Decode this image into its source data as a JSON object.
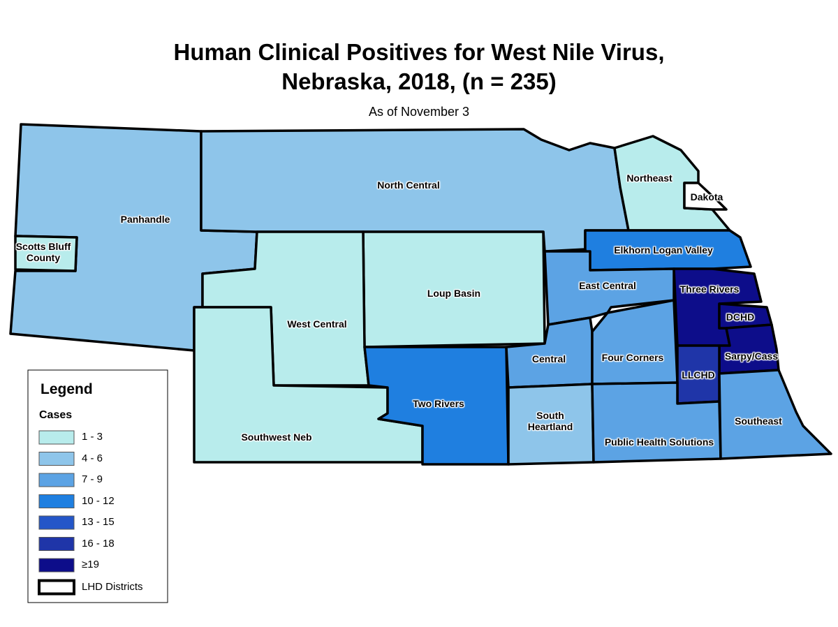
{
  "title_line1": "Human Clinical Positives for West Nile Virus,",
  "title_line2": "Nebraska, 2018, (n = 235)",
  "subtitle": "As of November 3",
  "regions": [
    {
      "name": "Panhandle",
      "color": "#8ec5ea"
    },
    {
      "name": "Scotts Bluff County",
      "color": "#b8ecec"
    },
    {
      "name": "North Central",
      "color": "#8ec5ea"
    },
    {
      "name": "Northeast",
      "color": "#b8ecec"
    },
    {
      "name": "Dakota",
      "color": "#ffffff"
    },
    {
      "name": "Elkhorn Logan Valley",
      "color": "#1f7fe0"
    },
    {
      "name": "Loup Basin",
      "color": "#b8ecec"
    },
    {
      "name": "West Central",
      "color": "#b8ecec"
    },
    {
      "name": "Southwest Neb",
      "color": "#b8ecec"
    },
    {
      "name": "Two Rivers",
      "color": "#1f7fe0"
    },
    {
      "name": "East Central",
      "color": "#5ca3e4"
    },
    {
      "name": "Central",
      "color": "#5ca3e4"
    },
    {
      "name": "South Heartland",
      "color": "#8ec5ea"
    },
    {
      "name": "Four Corners",
      "color": "#5ca3e4"
    },
    {
      "name": "Three Rivers",
      "color": "#0d0d8a"
    },
    {
      "name": "DCHD",
      "color": "#0d0d8a"
    },
    {
      "name": "Sarpy/Cass",
      "color": "#0d0d8a"
    },
    {
      "name": "LLCHD",
      "color": "#1f35a8"
    },
    {
      "name": "Public Health Solutions",
      "color": "#5ca3e4"
    },
    {
      "name": "Southeast",
      "color": "#5ca3e4"
    }
  ],
  "legend": {
    "title": "Legend",
    "subtitle": "Cases",
    "items": [
      {
        "label": "1 - 3",
        "color": "#b8ecec"
      },
      {
        "label": "4 - 6",
        "color": "#8ec5ea"
      },
      {
        "label": "7 - 9",
        "color": "#5ca3e4"
      },
      {
        "label": "10 - 12",
        "color": "#1f7fe0"
      },
      {
        "label": "13 - 15",
        "color": "#2456c8"
      },
      {
        "label": "16 - 18",
        "color": "#1f35a8"
      },
      {
        "label": "≥19",
        "color": "#0d0d8a"
      }
    ],
    "boundary_label": "LHD Districts"
  }
}
